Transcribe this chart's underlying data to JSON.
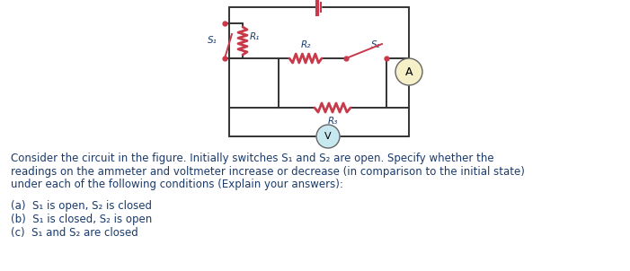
{
  "bg_color": "#ffffff",
  "text_color": "#1a3a6b",
  "circuit_color": "#c8394a",
  "wire_color": "#333333",
  "meter_bg_ammeter": "#f5f0c8",
  "meter_bg_voltmeter": "#c8e8f0",
  "paragraph": "Consider the circuit in the figure. Initially switches S₁ and S₂ are open. Specify whether the\nreadings on the ammeter and voltmeter increase or decrease (in comparison to the initial state)\nunder each of the following conditions (Explain your answers):",
  "item_a": "(a)  S₁ is open, S₂ is closed",
  "item_b": "(b)  S₁ is closed, S₂ is open",
  "item_c": "(c)  S₁ and S₂ are closed",
  "fontsize_text": 8.5,
  "fontsize_circuit": 7.5
}
